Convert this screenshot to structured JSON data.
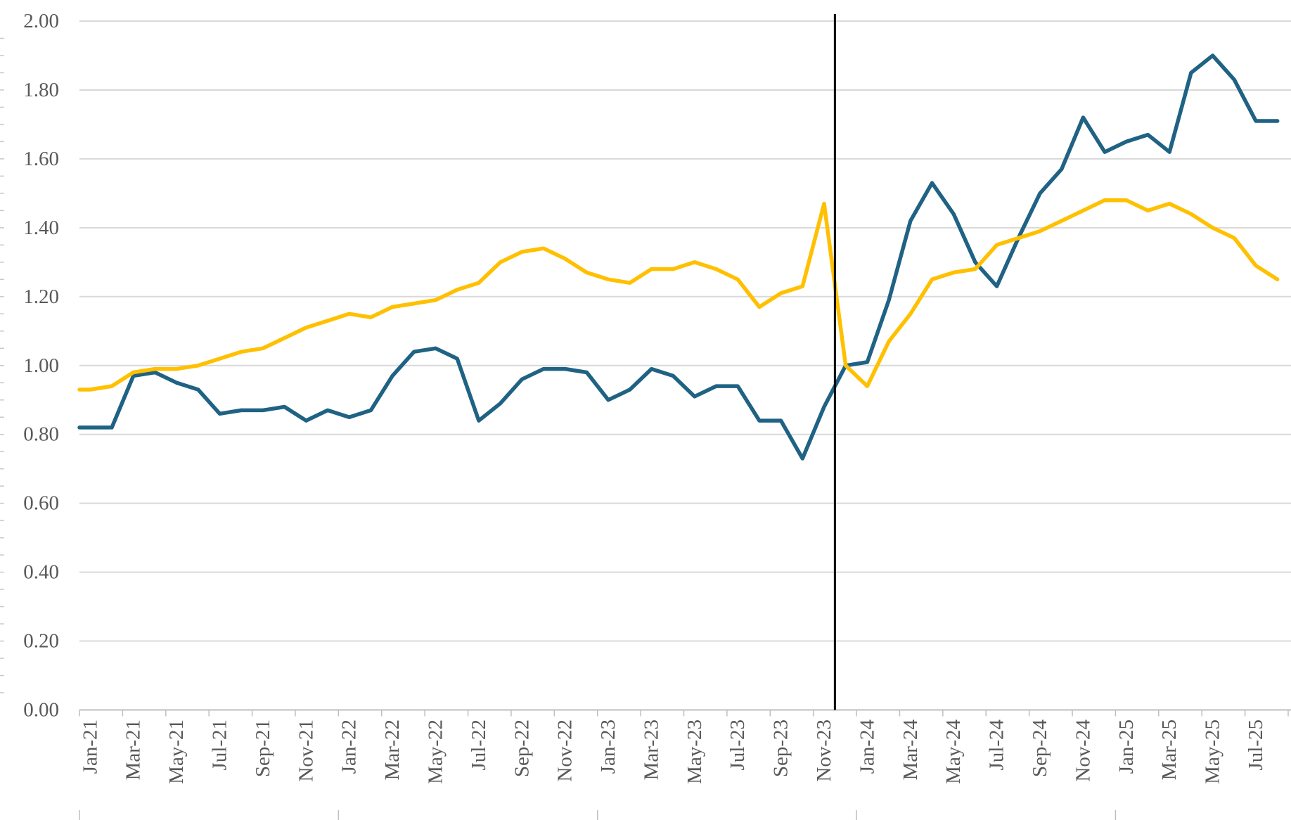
{
  "page": {
    "background": "#FFFFFF"
  },
  "colors": {
    "gridline": "#D9D9D9",
    "axis_line": "#BFBFBF",
    "tick": "#BFBFBF",
    "minor_tick": "#C9C9C9",
    "label_text": "#595959",
    "divider": "#000000",
    "series_blue": "#1F6284",
    "series_gold": "#FFC000"
  },
  "chart_data": {
    "type": "line",
    "title": "",
    "xlabel": "",
    "ylabel": "",
    "grid": true,
    "legend": "none",
    "ylim": [
      0,
      2
    ],
    "ytick_step": 0.2,
    "y_tick_labels": [
      "0.00",
      "0.20",
      "0.40",
      "0.60",
      "0.80",
      "1.00",
      "1.20",
      "1.40",
      "1.60",
      "1.80",
      "2.00"
    ],
    "x": [
      "Jan-21",
      "Feb-21",
      "Mar-21",
      "Apr-21",
      "May-21",
      "Jun-21",
      "Jul-21",
      "Aug-21",
      "Sep-21",
      "Oct-21",
      "Nov-21",
      "Dec-21",
      "Jan-22",
      "Feb-22",
      "Mar-22",
      "Apr-22",
      "May-22",
      "Jun-22",
      "Jul-22",
      "Aug-22",
      "Sep-22",
      "Oct-22",
      "Nov-22",
      "Dec-22",
      "Jan-23",
      "Feb-23",
      "Mar-23",
      "Apr-23",
      "May-23",
      "Jun-23",
      "Jul-23",
      "Aug-23",
      "Sep-23",
      "Oct-23",
      "Nov-23",
      "Dec-23",
      "Jan-24",
      "Feb-24",
      "Mar-24",
      "Apr-24",
      "May-24",
      "Jun-24",
      "Jul-24",
      "Aug-24",
      "Sep-24",
      "Oct-24",
      "Nov-24",
      "Dec-24",
      "Jan-25",
      "Feb-25",
      "Mar-25",
      "Apr-25",
      "May-25",
      "Jun-25",
      "Jul-25",
      "Aug-25"
    ],
    "x_tick_labels": [
      "Jan-21",
      "Mar-21",
      "May-21",
      "Jul-21",
      "Sep-21",
      "Nov-21",
      "Jan-22",
      "Mar-22",
      "May-22",
      "Jul-22",
      "Sep-22",
      "Nov-22",
      "Jan-23",
      "Mar-23",
      "May-23",
      "Jul-23",
      "Sep-23",
      "Nov-23",
      "Jan-24",
      "Mar-24",
      "May-24",
      "Jul-24",
      "Sep-24",
      "Nov-24",
      "Jan-25",
      "Mar-25",
      "May-25",
      "Jul-25"
    ],
    "series": [
      {
        "name": "blue",
        "color": "#1F6284",
        "values": [
          0.82,
          0.82,
          0.97,
          0.98,
          0.95,
          0.93,
          0.86,
          0.87,
          0.87,
          0.88,
          0.84,
          0.87,
          0.85,
          0.87,
          0.97,
          1.04,
          1.05,
          1.02,
          0.84,
          0.89,
          0.96,
          0.99,
          0.99,
          0.98,
          0.9,
          0.93,
          0.99,
          0.97,
          0.91,
          0.94,
          0.94,
          0.84,
          0.84,
          0.73,
          0.88,
          1.0,
          1.01,
          1.19,
          1.42,
          1.53,
          1.44,
          1.3,
          1.23,
          1.37,
          1.5,
          1.57,
          1.72,
          1.62,
          1.65,
          1.67,
          1.62,
          1.85,
          1.9,
          1.83,
          1.71,
          1.71
        ]
      },
      {
        "name": "gold",
        "color": "#FFC000",
        "values": [
          0.93,
          0.94,
          0.98,
          0.99,
          0.99,
          1.0,
          1.02,
          1.04,
          1.05,
          1.08,
          1.11,
          1.13,
          1.15,
          1.14,
          1.17,
          1.18,
          1.19,
          1.22,
          1.24,
          1.3,
          1.33,
          1.34,
          1.31,
          1.27,
          1.25,
          1.24,
          1.28,
          1.28,
          1.3,
          1.28,
          1.25,
          1.17,
          1.21,
          1.23,
          1.47,
          1.0,
          0.94,
          1.07,
          1.15,
          1.25,
          1.27,
          1.28,
          1.35,
          1.37,
          1.39,
          1.42,
          1.45,
          1.48,
          1.48,
          1.45,
          1.47,
          1.44,
          1.4,
          1.37,
          1.29,
          1.25
        ]
      }
    ],
    "annotation_line": {
      "color": "#000000",
      "between": [
        "Nov-23",
        "Dec-23"
      ],
      "boundary_index": 35
    }
  }
}
